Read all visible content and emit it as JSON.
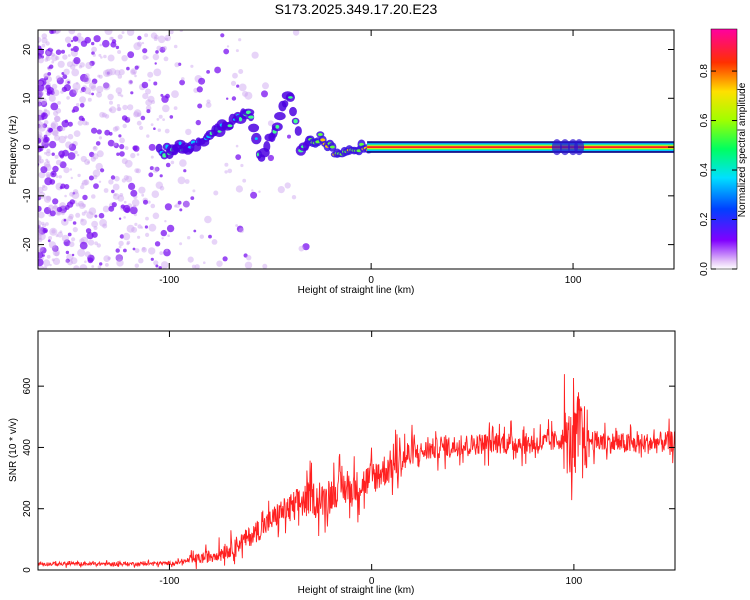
{
  "title": "S173.2025.349.17.20.E23",
  "chart_data": [
    {
      "type": "heatmap",
      "xlabel": "Height of straight line (km)",
      "ylabel": "Frequency (Hz)",
      "xlim": [
        -165,
        150
      ],
      "ylim": [
        -25,
        24
      ],
      "xticks": [
        -100,
        0,
        100
      ],
      "yticks": [
        -20,
        -10,
        0,
        10,
        20
      ],
      "colorbar": {
        "label": "Normalized spectral amplitude",
        "range": [
          0,
          0.97
        ],
        "ticks": [
          0.0,
          0.2,
          0.4,
          0.6,
          0.8
        ]
      },
      "ridge": [
        {
          "x": -105,
          "y": -1
        },
        {
          "x": -95,
          "y": 0
        },
        {
          "x": -85,
          "y": 1
        },
        {
          "x": -78,
          "y": 3
        },
        {
          "x": -70,
          "y": 5
        },
        {
          "x": -60,
          "y": 7
        },
        {
          "x": -55,
          "y": -3
        },
        {
          "x": -50,
          "y": 2
        },
        {
          "x": -40,
          "y": 11
        },
        {
          "x": -35,
          "y": 0
        },
        {
          "x": -25,
          "y": 2
        },
        {
          "x": -15,
          "y": -2
        },
        {
          "x": -5,
          "y": 0
        },
        {
          "x": 0,
          "y": 0
        },
        {
          "x": 50,
          "y": 0
        },
        {
          "x": 100,
          "y": 0
        },
        {
          "x": 150,
          "y": 0
        }
      ]
    },
    {
      "type": "line",
      "xlabel": "Height of straight line (km)",
      "ylabel": "SNR (10 * v/v)",
      "xlim": [
        -165,
        150
      ],
      "ylim": [
        0,
        780
      ],
      "xticks": [
        -100,
        0,
        100
      ],
      "yticks": [
        0,
        200,
        400,
        600
      ],
      "color": "#ff2020",
      "series": [
        {
          "name": "SNR",
          "x": [
            -165,
            -140,
            -120,
            -100,
            -90,
            -80,
            -70,
            -60,
            -50,
            -45,
            -40,
            -35,
            -30,
            -25,
            -20,
            -15,
            -10,
            -5,
            0,
            5,
            10,
            15,
            20,
            25,
            30,
            35,
            40,
            50,
            60,
            70,
            80,
            90,
            95,
            100,
            102,
            105,
            110,
            120,
            130,
            140,
            150
          ],
          "values": [
            20,
            20,
            20,
            22,
            30,
            45,
            70,
            110,
            160,
            190,
            200,
            220,
            240,
            220,
            250,
            270,
            260,
            280,
            300,
            320,
            340,
            360,
            380,
            385,
            395,
            400,
            405,
            410,
            415,
            415,
            410,
            420,
            430,
            400,
            480,
            430,
            420,
            415,
            410,
            415,
            420
          ]
        }
      ]
    }
  ]
}
